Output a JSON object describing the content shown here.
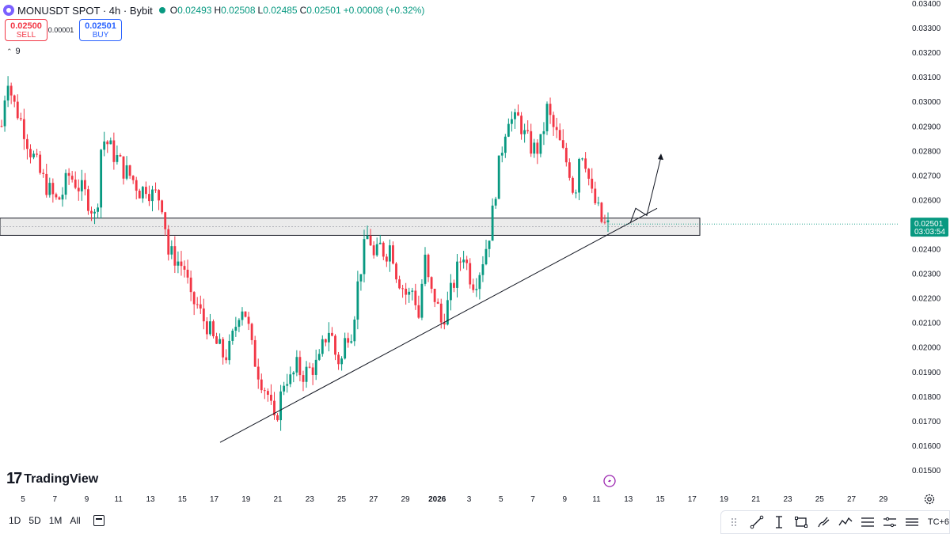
{
  "header": {
    "symbol": "MONUSDT SPOT · 4h · Bybit",
    "ohlc": [
      {
        "key": "O",
        "value": "0.02493"
      },
      {
        "key": "H",
        "value": "0.02508"
      },
      {
        "key": "L",
        "value": "0.02485"
      },
      {
        "key": "C",
        "value": "0.02501"
      },
      {
        "key": "",
        "value": "+0.00008 (+0.32%)"
      }
    ]
  },
  "trade": {
    "sell_price": "0.02500",
    "sell_label": "SELL",
    "spread": "0.00001",
    "buy_price": "0.02501",
    "buy_label": "BUY"
  },
  "indicator": {
    "collapse": "9"
  },
  "logo": {
    "mark": "17",
    "text": "TradingView"
  },
  "bottom": {
    "ranges": [
      "1D",
      "5D",
      "1M",
      "All"
    ],
    "timezone": "TC+6"
  },
  "colors": {
    "up": "#089981",
    "down": "#f23645",
    "price_label_bg": "#089981",
    "zone_fill": "#e6e6e6"
  },
  "icons": [
    "calendar-icon",
    "gear-icon",
    "trendline-icon",
    "ray-icon",
    "rectangle-icon",
    "brush-icon",
    "pattern-icon",
    "fib-icon",
    "ruler-icon",
    "lightning-icon"
  ],
  "chart_data": {
    "type": "candlestick",
    "y_axis_labels": [
      "0.03400",
      "0.03300",
      "0.03200",
      "0.03100",
      "0.03000",
      "0.02900",
      "0.02800",
      "0.02700",
      "0.02600",
      "0.02500",
      "0.02400",
      "0.02300",
      "0.02200",
      "0.02100",
      "0.02000",
      "0.01900",
      "0.01800",
      "0.01700",
      "0.01600",
      "0.01500"
    ],
    "ylim": [
      0.0146,
      0.034
    ],
    "x_axis_labels": [
      "5",
      "7",
      "9",
      "11",
      "13",
      "15",
      "17",
      "19",
      "21",
      "23",
      "25",
      "27",
      "29",
      "2026",
      "3",
      "5",
      "7",
      "9",
      "11",
      "13",
      "15",
      "17",
      "19",
      "21",
      "23",
      "25",
      "27",
      "29"
    ],
    "last_price": "0.02501",
    "countdown": "03:03:54",
    "zone": {
      "top": 0.02525,
      "bottom": 0.02455
    },
    "trendline": {
      "start": 0.01612,
      "end": 0.02565
    },
    "projection": [
      0.02504,
      0.02565,
      0.02536,
      0.02775
    ],
    "candle_path": [
      0.029,
      0.0312,
      0.03,
      0.0295,
      0.0289,
      0.0281,
      0.0276,
      0.027,
      0.0266,
      0.0262,
      0.0259,
      0.0263,
      0.027,
      0.0268,
      0.0265,
      0.0262,
      0.0258,
      0.0251,
      0.0285,
      0.0283,
      0.0279,
      0.0276,
      0.0272,
      0.027,
      0.0267,
      0.0263,
      0.0266,
      0.0262,
      0.0262,
      0.0258,
      0.0238,
      0.0237,
      0.0234,
      0.0232,
      0.0218,
      0.0218,
      0.0212,
      0.0209,
      0.0203,
      0.02,
      0.0196,
      0.0199,
      0.0208,
      0.0218,
      0.0213,
      0.0199,
      0.0191,
      0.0185,
      0.018,
      0.0168,
      0.0178,
      0.0189,
      0.0186,
      0.0192,
      0.0189,
      0.019,
      0.0192,
      0.0193,
      0.0203,
      0.0208,
      0.0197,
      0.0193,
      0.0206,
      0.0207,
      0.0225,
      0.0238,
      0.0247,
      0.0235,
      0.0241,
      0.0238,
      0.0242,
      0.023,
      0.0225,
      0.022,
      0.0224,
      0.0212,
      0.0237,
      0.0222,
      0.022,
      0.021,
      0.0216,
      0.0224,
      0.0232,
      0.0239,
      0.023,
      0.0226,
      0.0232,
      0.024,
      0.025,
      0.0268,
      0.0282,
      0.0295,
      0.0291,
      0.0293,
      0.0286,
      0.0282,
      0.028,
      0.0283,
      0.0297,
      0.029,
      0.0285,
      0.0278,
      0.0273,
      0.0261,
      0.0282,
      0.0276,
      0.0262,
      0.0257,
      0.025,
      0.0249
    ]
  }
}
